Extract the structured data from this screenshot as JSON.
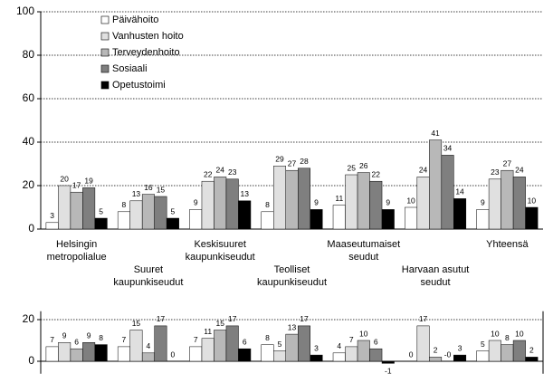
{
  "chart_data": [
    {
      "type": "bar",
      "categories": [
        [
          "Helsingin",
          "metropolialue"
        ],
        [
          "Suuret",
          "kaupunkiseudut"
        ],
        [
          "Keskisuuret",
          "kaupunkiseudut"
        ],
        [
          "Teolliset",
          "kaupunkiseudut"
        ],
        [
          "Maaseutumaiset",
          "seudut"
        ],
        [
          "Harvaan asutut",
          "seudut"
        ],
        [
          "Yhteensä"
        ]
      ],
      "series": [
        {
          "name": "Päivähoito",
          "color": "#ffffff",
          "values": [
            3,
            8,
            9,
            8,
            11,
            10,
            9
          ]
        },
        {
          "name": "Vanhusten hoito",
          "color": "#e0e0e0",
          "values": [
            20,
            13,
            22,
            29,
            25,
            24,
            23
          ]
        },
        {
          "name": "Terveydenhoito",
          "color": "#b8b8b8",
          "values": [
            17,
            16,
            24,
            27,
            26,
            41,
            27
          ]
        },
        {
          "name": "Sosiaali",
          "color": "#7f7f7f",
          "values": [
            19,
            15,
            23,
            28,
            22,
            34,
            24
          ]
        },
        {
          "name": "Opetustoimi",
          "color": "#000000",
          "values": [
            5,
            5,
            13,
            9,
            9,
            14,
            10
          ]
        }
      ],
      "ylim": [
        0,
        100
      ],
      "yticks": [
        0,
        20,
        40,
        60,
        80,
        100
      ],
      "grid": true,
      "legend": "top-left"
    },
    {
      "type": "bar",
      "series": [
        {
          "color": "#ffffff",
          "values": [
            7,
            7,
            7,
            8,
            4,
            0,
            5
          ]
        },
        {
          "color": "#e0e0e0",
          "values": [
            9,
            15,
            11,
            5,
            7,
            17,
            10
          ]
        },
        {
          "color": "#b8b8b8",
          "values": [
            6,
            4,
            15,
            13,
            10,
            2,
            8
          ]
        },
        {
          "color": "#7f7f7f",
          "values": [
            9,
            17,
            17,
            17,
            6,
            0,
            10
          ],
          "value_labels": [
            "9",
            "17",
            "17",
            "17",
            "6",
            "-0",
            "10"
          ]
        },
        {
          "color": "#000000",
          "values": [
            8,
            0,
            6,
            3,
            -1,
            3,
            2
          ]
        }
      ],
      "ylim": [
        -6,
        24
      ],
      "yticks": [
        0,
        20
      ],
      "grid": true
    }
  ]
}
